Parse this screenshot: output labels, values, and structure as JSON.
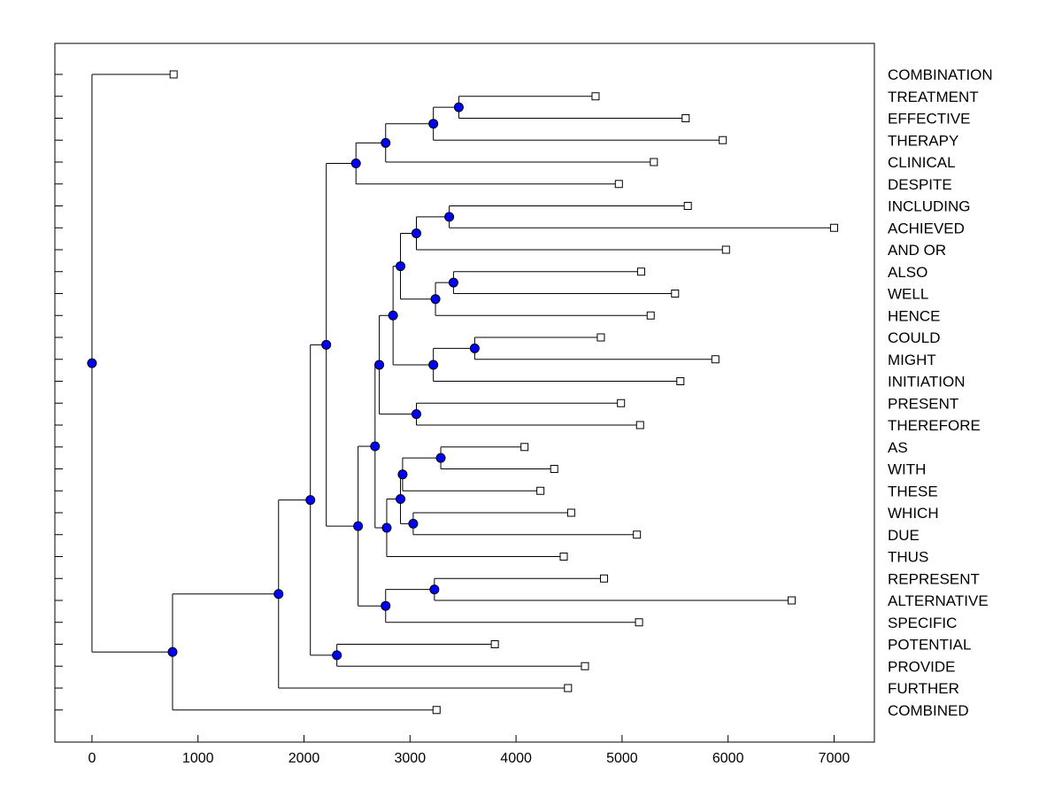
{
  "chart_data": {
    "type": "dendrogram",
    "title": "",
    "xlabel": "",
    "ylabel": "",
    "xlim": [
      -350,
      7380
    ],
    "xticks": [
      0,
      1000,
      2000,
      3000,
      4000,
      5000,
      6000,
      7000
    ],
    "xtick_labels": [
      "0",
      "1000",
      "2000",
      "3000",
      "4000",
      "5000",
      "6000",
      "7000"
    ],
    "grid": false,
    "leaf_labels_position": "right",
    "node_color": "#0000ff",
    "leaves": [
      {
        "label": "COMBINATION",
        "value": 770
      },
      {
        "label": "TREATMENT",
        "value": 4750
      },
      {
        "label": "EFFECTIVE",
        "value": 5600
      },
      {
        "label": "THERAPY",
        "value": 5950
      },
      {
        "label": "CLINICAL",
        "value": 5300
      },
      {
        "label": "DESPITE",
        "value": 4970
      },
      {
        "label": "INCLUDING",
        "value": 5620
      },
      {
        "label": "ACHIEVED",
        "value": 7000
      },
      {
        "label": "AND OR",
        "value": 5980
      },
      {
        "label": "ALSO",
        "value": 5180
      },
      {
        "label": "WELL",
        "value": 5500
      },
      {
        "label": "HENCE",
        "value": 5270
      },
      {
        "label": "COULD",
        "value": 4800
      },
      {
        "label": "MIGHT",
        "value": 5880
      },
      {
        "label": "INITIATION",
        "value": 5550
      },
      {
        "label": "PRESENT",
        "value": 4990
      },
      {
        "label": "THEREFORE",
        "value": 5170
      },
      {
        "label": "AS",
        "value": 4080
      },
      {
        "label": "WITH",
        "value": 4360
      },
      {
        "label": "THESE",
        "value": 4230
      },
      {
        "label": "WHICH",
        "value": 4520
      },
      {
        "label": "DUE",
        "value": 5140
      },
      {
        "label": "THUS",
        "value": 4450
      },
      {
        "label": "REPRESENT",
        "value": 4830
      },
      {
        "label": "ALTERNATIVE",
        "value": 6600
      },
      {
        "label": "SPECIFIC",
        "value": 5160
      },
      {
        "label": "POTENTIAL",
        "value": 3800
      },
      {
        "label": "PROVIDE",
        "value": 4650
      },
      {
        "label": "FURTHER",
        "value": 4490
      },
      {
        "label": "COMBINED",
        "value": 3250
      }
    ],
    "merges": [
      {
        "id": "n1",
        "value": 3460,
        "children": [
          "TREATMENT",
          "EFFECTIVE"
        ]
      },
      {
        "id": "n2",
        "value": 3220,
        "children": [
          "n1",
          "THERAPY"
        ]
      },
      {
        "id": "n3",
        "value": 2770,
        "children": [
          "n2",
          "CLINICAL"
        ]
      },
      {
        "id": "n4",
        "value": 2490,
        "children": [
          "n3",
          "DESPITE"
        ]
      },
      {
        "id": "n5",
        "value": 3370,
        "children": [
          "INCLUDING",
          "ACHIEVED"
        ]
      },
      {
        "id": "n6",
        "value": 3060,
        "children": [
          "n5",
          "AND OR"
        ]
      },
      {
        "id": "n7",
        "value": 3410,
        "children": [
          "ALSO",
          "WELL"
        ]
      },
      {
        "id": "n8",
        "value": 3240,
        "children": [
          "n7",
          "HENCE"
        ]
      },
      {
        "id": "n9",
        "value": 2910,
        "children": [
          "n6",
          "n8"
        ]
      },
      {
        "id": "n10",
        "value": 3610,
        "children": [
          "COULD",
          "MIGHT"
        ]
      },
      {
        "id": "n11",
        "value": 3220,
        "children": [
          "n10",
          "INITIATION"
        ]
      },
      {
        "id": "n12",
        "value": 2840,
        "children": [
          "n9",
          "n11"
        ]
      },
      {
        "id": "n13",
        "value": 3060,
        "children": [
          "PRESENT",
          "THEREFORE"
        ]
      },
      {
        "id": "n14",
        "value": 2710,
        "children": [
          "n12",
          "n13"
        ]
      },
      {
        "id": "n15",
        "value": 3290,
        "children": [
          "AS",
          "WITH"
        ]
      },
      {
        "id": "n16",
        "value": 2930,
        "children": [
          "n15",
          "THESE"
        ]
      },
      {
        "id": "n17",
        "value": 3030,
        "children": [
          "WHICH",
          "DUE"
        ]
      },
      {
        "id": "n18",
        "value": 2910,
        "children": [
          "n16",
          "n17"
        ]
      },
      {
        "id": "n19",
        "value": 2780,
        "children": [
          "n18",
          "THUS"
        ]
      },
      {
        "id": "n20",
        "value": 2670,
        "children": [
          "n14",
          "n19"
        ]
      },
      {
        "id": "n21",
        "value": 3230,
        "children": [
          "REPRESENT",
          "ALTERNATIVE"
        ]
      },
      {
        "id": "n22",
        "value": 2770,
        "children": [
          "n21",
          "SPECIFIC"
        ]
      },
      {
        "id": "n23",
        "value": 2510,
        "children": [
          "n20",
          "n22"
        ]
      },
      {
        "id": "n24",
        "value": 2210,
        "children": [
          "n4",
          "n23"
        ]
      },
      {
        "id": "n25",
        "value": 2310,
        "children": [
          "POTENTIAL",
          "PROVIDE"
        ]
      },
      {
        "id": "n26",
        "value": 2060,
        "children": [
          "n24",
          "n25"
        ]
      },
      {
        "id": "n27",
        "value": 1760,
        "children": [
          "n26",
          "FURTHER"
        ]
      },
      {
        "id": "n28",
        "value": 760,
        "children": [
          "n27",
          "COMBINED"
        ]
      },
      {
        "id": "n29",
        "value": 0,
        "children": [
          "COMBINATION",
          "n28"
        ]
      }
    ]
  }
}
